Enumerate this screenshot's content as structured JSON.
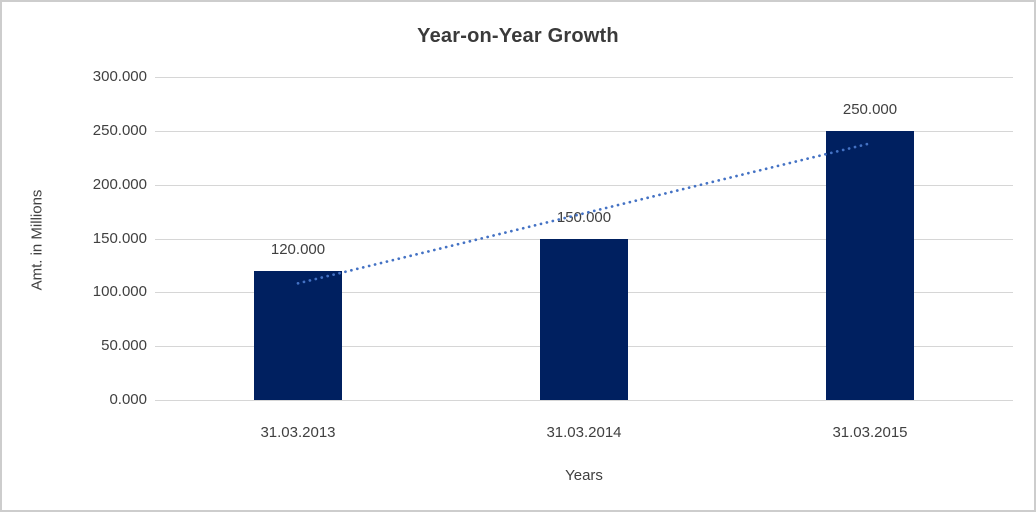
{
  "window": {
    "background": "#ffffff",
    "border_color": "#cdcdcd"
  },
  "chart_data": {
    "type": "bar",
    "title": "Year-on-Year Growth",
    "xlabel": "Years",
    "ylabel": "Amt. in Millions",
    "categories": [
      "31.03.2013",
      "31.03.2014",
      "31.03.2015"
    ],
    "values": [
      120,
      150,
      250
    ],
    "bar_labels": [
      "120.000",
      "150.000",
      "250.000"
    ],
    "y_ticks": [
      {
        "value": 0,
        "label": "0.000"
      },
      {
        "value": 50,
        "label": "50.000"
      },
      {
        "value": 100,
        "label": "100.000"
      },
      {
        "value": 150,
        "label": "150.000"
      },
      {
        "value": 200,
        "label": "200.000"
      },
      {
        "value": 250,
        "label": "250.000"
      },
      {
        "value": 300,
        "label": "300.000"
      }
    ],
    "ylim": [
      0,
      300
    ],
    "grid": true,
    "legend": "none",
    "bar_color": "#002060",
    "trendline": {
      "type": "linear",
      "style": "dotted",
      "color": "#4472c4",
      "start_value": 108.33,
      "end_value": 238.33
    }
  }
}
